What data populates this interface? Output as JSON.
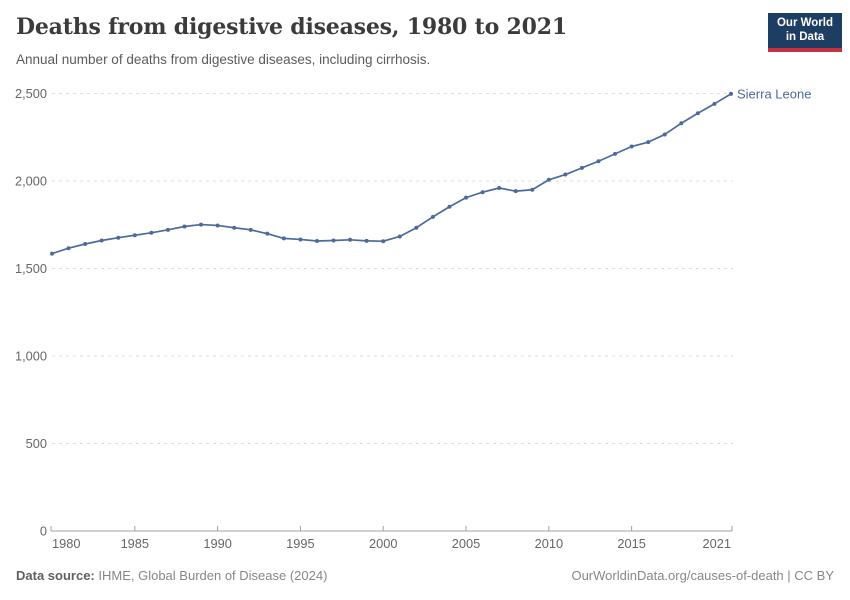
{
  "header": {
    "title": "Deaths from digestive diseases, 1980 to 2021",
    "subtitle": "Annual number of deaths from digestive diseases, including cirrhosis.",
    "logo": {
      "line1": "Our World",
      "line2": "in Data",
      "bg_color": "#1d3d63",
      "accent_color": "#c5313d"
    }
  },
  "footer": {
    "source_label": "Data source:",
    "source_value": "IHME, Global Burden of Disease (2024)",
    "link": "OurWorldinData.org/causes-of-death | CC BY"
  },
  "chart_data": {
    "type": "line",
    "title": "Deaths from digestive diseases, 1980 to 2021",
    "xlabel": "",
    "ylabel": "",
    "xlim": [
      1980,
      2021
    ],
    "ylim": [
      0,
      2500
    ],
    "grid": "horizontal-dashed",
    "legend_position": "end-of-line-label",
    "x": [
      1980,
      1981,
      1982,
      1983,
      1984,
      1985,
      1986,
      1987,
      1988,
      1989,
      1990,
      1991,
      1992,
      1993,
      1994,
      1995,
      1996,
      1997,
      1998,
      1999,
      2000,
      2001,
      2002,
      2003,
      2004,
      2005,
      2006,
      2007,
      2008,
      2009,
      2010,
      2011,
      2012,
      2013,
      2014,
      2015,
      2016,
      2017,
      2018,
      2019,
      2020,
      2021
    ],
    "series": [
      {
        "name": "Sierra Leone",
        "color": "#4C6A9C",
        "values": [
          1585,
          1616,
          1640,
          1660,
          1676,
          1690,
          1704,
          1721,
          1740,
          1751,
          1746,
          1733,
          1721,
          1699,
          1672,
          1666,
          1657,
          1660,
          1664,
          1658,
          1656,
          1683,
          1733,
          1795,
          1853,
          1905,
          1936,
          1960,
          1942,
          1950,
          2007,
          2037,
          2075,
          2113,
          2155,
          2197,
          2222,
          2266,
          2330,
          2387,
          2441,
          2498
        ]
      }
    ],
    "y_ticks": [
      {
        "value": 0,
        "label": "0"
      },
      {
        "value": 500,
        "label": "500"
      },
      {
        "value": 1000,
        "label": "1,000"
      },
      {
        "value": 1500,
        "label": "1,500"
      },
      {
        "value": 2000,
        "label": "2,000"
      },
      {
        "value": 2500,
        "label": "2,500"
      }
    ],
    "x_ticks": [
      {
        "value": 1980,
        "label": "1980"
      },
      {
        "value": 1985,
        "label": "1985"
      },
      {
        "value": 1990,
        "label": "1990"
      },
      {
        "value": 1995,
        "label": "1995"
      },
      {
        "value": 2000,
        "label": "2000"
      },
      {
        "value": 2005,
        "label": "2005"
      },
      {
        "value": 2010,
        "label": "2010"
      },
      {
        "value": 2015,
        "label": "2015"
      },
      {
        "value": 2021,
        "label": "2021"
      }
    ]
  }
}
